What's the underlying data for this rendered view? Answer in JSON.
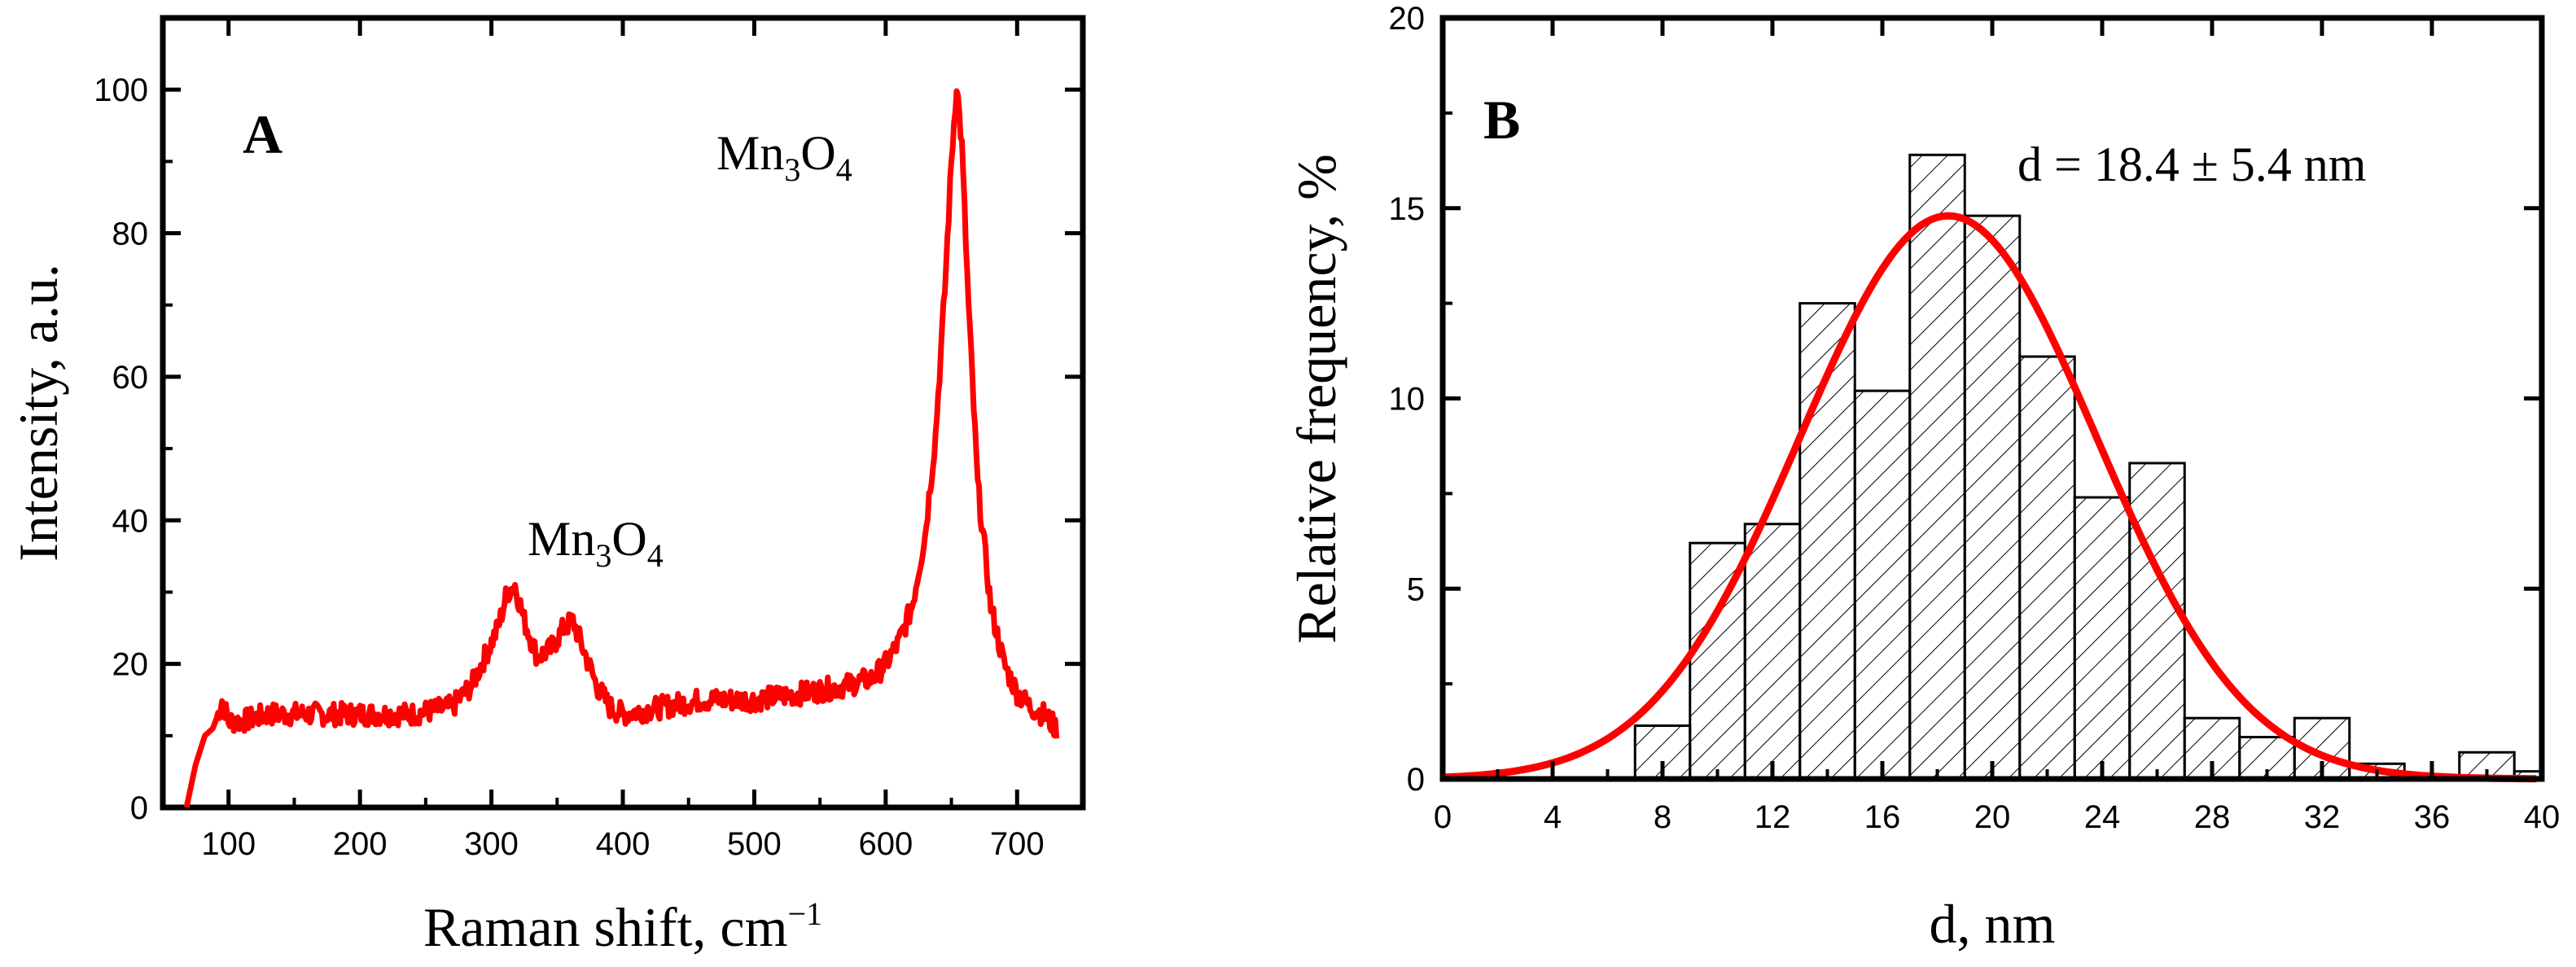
{
  "chart_data": [
    {
      "panel": "A",
      "type": "line",
      "xlabel": "Raman shift, cm−1",
      "ylabel": "Intensity, a.u.",
      "xlim": [
        50,
        750
      ],
      "ylim": [
        0,
        110
      ],
      "xticks": [
        100,
        200,
        300,
        400,
        500,
        600,
        700
      ],
      "yticks": [
        0,
        20,
        40,
        60,
        80,
        100
      ],
      "grid": false,
      "color": "#ff0000",
      "series": [
        {
          "name": "Raman spectrum",
          "x": [
            68,
            75,
            82,
            88,
            92,
            95,
            100,
            110,
            130,
            160,
            200,
            240,
            270,
            285,
            295,
            305,
            312,
            318,
            325,
            335,
            345,
            355,
            362,
            370,
            380,
            390,
            400,
            430,
            460,
            500,
            540,
            570,
            590,
            600,
            610,
            620,
            630,
            638,
            645,
            650,
            654,
            658,
            663,
            670,
            680,
            690,
            700,
            710,
            720,
            730
          ],
          "y": [
            0,
            6,
            10,
            11,
            13,
            15,
            12,
            12,
            13,
            13,
            13,
            13,
            14,
            17,
            21,
            25,
            30,
            31,
            26,
            21,
            22,
            25,
            26,
            22,
            17,
            14,
            13,
            14,
            15,
            15,
            16,
            17,
            18,
            20,
            23,
            28,
            38,
            52,
            72,
            90,
            101,
            92,
            70,
            45,
            28,
            20,
            16,
            14,
            13,
            11
          ]
        }
      ],
      "annotations": [
        {
          "text": "Mn",
          "sub": "3",
          "text2": "O",
          "sub2": "4",
          "x": 360,
          "y": 36
        },
        {
          "text": "Mn",
          "sub": "3",
          "text2": "O",
          "sub2": "4",
          "x": 570,
          "y": 93
        }
      ]
    },
    {
      "panel": "B",
      "type": "bar",
      "xlabel": "d, nm",
      "ylabel": "Relative frequency, %",
      "xlim": [
        0,
        40
      ],
      "ylim": [
        0,
        20
      ],
      "xticks": [
        0,
        4,
        8,
        12,
        16,
        20,
        24,
        28,
        32,
        36,
        40
      ],
      "yticks": [
        0,
        5,
        10,
        15,
        20
      ],
      "grid": false,
      "bin_edges": [
        7,
        9,
        11,
        13,
        15,
        17,
        19,
        21,
        23,
        25,
        27,
        29,
        31,
        33,
        35,
        37,
        39,
        40
      ],
      "values": [
        1.4,
        6.2,
        6.7,
        12.5,
        10.2,
        16.4,
        14.8,
        11.1,
        7.4,
        8.3,
        1.6,
        1.1,
        1.6,
        0.4,
        0.0,
        0.7,
        0.2
      ],
      "fit": {
        "type": "gaussian",
        "mean": 18.4,
        "sd": 5.4,
        "peak": 14.8,
        "color": "#ff0000"
      },
      "annotation": "d = 18.4 ± 5.4 nm"
    }
  ],
  "panel_a": {
    "letter": "A",
    "ylabel": "Intensity, a.u.",
    "xlabel_main": "Raman shift, cm",
    "xlabel_sup": "−1",
    "peak_label_mn": "Mn",
    "peak_label_3": "3",
    "peak_label_o": "O",
    "peak_label_4": "4"
  },
  "panel_b": {
    "letter": "B",
    "ylabel": "Relative frequency, %",
    "xlabel": "d, nm",
    "fit_text": "d = 18.4 ± 5.4 nm"
  }
}
